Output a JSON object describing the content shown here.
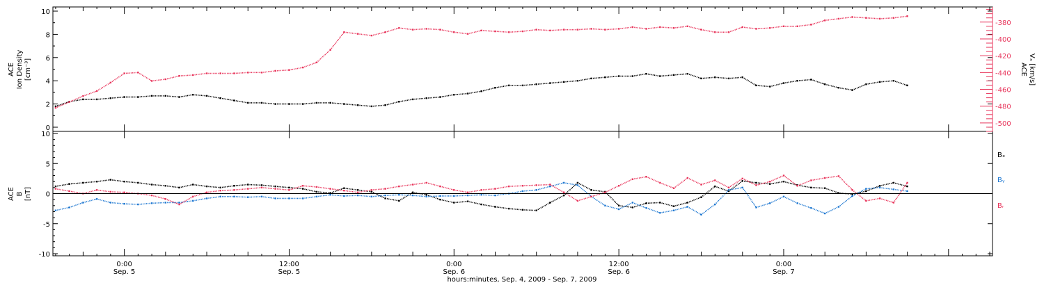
{
  "colors": {
    "black": "#000000",
    "pink": "#e8365c",
    "blue": "#1f78d1"
  },
  "figure": {
    "xlabel": "hours:minutes, Sep.  4, 2009 - Sep.  7, 2009"
  },
  "chart_data": [
    {
      "type": "scatter",
      "panel": "top",
      "left_axis": {
        "label_lines": [
          "ACE",
          "Ion Density",
          "[cm⁻³]"
        ],
        "ylim": [
          0,
          10
        ],
        "ticks": [
          0,
          2,
          4,
          6,
          8,
          10
        ]
      },
      "right_axis": {
        "label_lines": [
          "ACE",
          "Vₓ [km/s]"
        ],
        "ylim": [
          -510,
          -362
        ],
        "ticks": [
          -500,
          -480,
          -460,
          -440,
          -420,
          -400,
          -380
        ]
      },
      "xlim_hours": [
        -5.2,
        63.2
      ],
      "series": [
        {
          "name": "",
          "axis": "left",
          "color": "black",
          "x": [
            -5,
            -4,
            -3,
            -2,
            -1,
            0,
            1,
            2,
            3,
            4,
            5,
            6,
            7,
            8,
            9,
            10,
            11,
            12,
            13,
            14,
            15,
            16,
            17,
            18,
            19,
            20,
            21,
            22,
            23,
            24,
            25,
            26,
            27,
            28,
            29,
            30,
            31,
            32,
            33,
            34,
            35,
            36,
            37,
            38,
            39,
            40,
            41,
            42,
            43,
            44,
            45,
            46,
            47,
            48,
            49,
            50,
            51,
            52,
            53,
            54,
            55,
            56,
            57
          ],
          "y": [
            1.8,
            2.2,
            2.4,
            2.4,
            2.5,
            2.6,
            2.6,
            2.7,
            2.7,
            2.6,
            2.8,
            2.7,
            2.5,
            2.3,
            2.1,
            2.1,
            2.0,
            2.0,
            2.0,
            2.1,
            2.1,
            2.0,
            1.9,
            1.8,
            1.9,
            2.2,
            2.4,
            2.5,
            2.6,
            2.8,
            2.9,
            3.1,
            3.4,
            3.6,
            3.6,
            3.7,
            3.8,
            3.9,
            4.0,
            4.2,
            4.3,
            4.4,
            4.4,
            4.6,
            4.4,
            4.5,
            4.6,
            4.2,
            4.3,
            4.2,
            4.3,
            3.6,
            3.5,
            3.8,
            4.0,
            4.1,
            3.7,
            3.4,
            3.2,
            3.7,
            3.9,
            4.0,
            3.6
          ]
        },
        {
          "name": "",
          "axis": "right",
          "color": "pink",
          "x": [
            -5,
            -4,
            -3,
            -2,
            -1,
            0,
            1,
            2,
            3,
            4,
            5,
            6,
            7,
            8,
            9,
            10,
            11,
            12,
            13,
            14,
            15,
            16,
            17,
            18,
            19,
            20,
            21,
            22,
            23,
            24,
            25,
            26,
            27,
            28,
            29,
            30,
            31,
            32,
            33,
            34,
            35,
            36,
            37,
            38,
            39,
            40,
            41,
            42,
            43,
            44,
            45,
            46,
            47,
            48,
            49,
            50,
            51,
            52,
            53,
            54,
            55,
            56,
            57
          ],
          "y": [
            -482,
            -475,
            -468,
            -462,
            -452,
            -441,
            -440,
            -450,
            -448,
            -444,
            -443,
            -441,
            -441,
            -441,
            -440,
            -440,
            -438,
            -437,
            -434,
            -428,
            -413,
            -392,
            -394,
            -396,
            -392,
            -387,
            -389,
            -388,
            -389,
            -392,
            -394,
            -390,
            -391,
            -392,
            -391,
            -389,
            -390,
            -389,
            -389,
            -388,
            -389,
            -388,
            -386,
            -388,
            -386,
            -387,
            -385,
            -389,
            -392,
            -392,
            -386,
            -388,
            -387,
            -385,
            -385,
            -383,
            -378,
            -376,
            -374,
            -375,
            -376,
            -375,
            -373
          ]
        }
      ]
    },
    {
      "type": "scatter",
      "panel": "bottom",
      "left_axis": {
        "label_lines": [
          "ACE",
          "B",
          "[nT]"
        ],
        "ylim": [
          -10,
          10
        ],
        "ticks": [
          -10,
          -5,
          0,
          5,
          10
        ]
      },
      "xlim_hours": [
        -5.2,
        63.2
      ],
      "x_ticks": [
        {
          "hour": 0,
          "time": "0:00",
          "date": "Sep. 5"
        },
        {
          "hour": 12,
          "time": "12:00",
          "date": "Sep. 5"
        },
        {
          "hour": 24,
          "time": "0:00",
          "date": "Sep. 6"
        },
        {
          "hour": 36,
          "time": "12:00",
          "date": "Sep. 6"
        },
        {
          "hour": 48,
          "time": "0:00",
          "date": "Sep. 7"
        }
      ],
      "series": [
        {
          "name": "Bₓ",
          "color": "black",
          "x": [
            -5,
            -4,
            -3,
            -2,
            -1,
            0,
            1,
            2,
            3,
            4,
            5,
            6,
            7,
            8,
            9,
            10,
            11,
            12,
            13,
            14,
            15,
            16,
            17,
            18,
            19,
            20,
            21,
            22,
            23,
            24,
            25,
            26,
            27,
            28,
            29,
            30,
            31,
            32,
            33,
            34,
            35,
            36,
            37,
            38,
            39,
            40,
            41,
            42,
            43,
            44,
            45,
            46,
            47,
            48,
            49,
            50,
            51,
            52,
            53,
            54,
            55,
            56,
            57
          ],
          "y": [
            1.2,
            1.6,
            1.8,
            2.0,
            2.3,
            2.0,
            1.8,
            1.5,
            1.3,
            1.0,
            1.5,
            1.2,
            1.0,
            1.3,
            1.5,
            1.4,
            1.2,
            1.0,
            0.8,
            0.3,
            0.1,
            0.9,
            0.6,
            0.3,
            -0.8,
            -1.2,
            0.2,
            -0.2,
            -1.0,
            -1.5,
            -1.3,
            -1.8,
            -2.2,
            -2.5,
            -2.7,
            -2.8,
            -1.5,
            -0.3,
            1.8,
            0.6,
            0.3,
            -2.0,
            -2.3,
            -1.6,
            -1.5,
            -2.1,
            -1.5,
            -0.6,
            1.2,
            0.4,
            2.1,
            1.8,
            1.6,
            2.0,
            1.4,
            1.0,
            0.9,
            0.1,
            -0.1,
            0.4,
            1.3,
            1.8,
            1.2
          ]
        },
        {
          "name": "Bᵧ",
          "color": "blue",
          "x": [
            -5,
            -4,
            -3,
            -2,
            -1,
            0,
            1,
            2,
            3,
            4,
            5,
            6,
            7,
            8,
            9,
            10,
            11,
            12,
            13,
            14,
            15,
            16,
            17,
            18,
            19,
            20,
            21,
            22,
            23,
            24,
            25,
            26,
            27,
            28,
            29,
            30,
            31,
            32,
            33,
            34,
            35,
            36,
            37,
            38,
            39,
            40,
            41,
            42,
            43,
            44,
            45,
            46,
            47,
            48,
            49,
            50,
            51,
            52,
            53,
            54,
            55,
            56,
            57
          ],
          "y": [
            -2.8,
            -2.3,
            -1.5,
            -0.9,
            -1.5,
            -1.7,
            -1.8,
            -1.6,
            -1.5,
            -1.5,
            -1.2,
            -0.8,
            -0.5,
            -0.5,
            -0.6,
            -0.5,
            -0.8,
            -0.8,
            -0.8,
            -0.5,
            -0.2,
            -0.4,
            -0.3,
            -0.5,
            -0.3,
            -0.2,
            -0.3,
            -0.5,
            -0.4,
            -0.4,
            -0.3,
            -0.2,
            -0.3,
            0.0,
            0.4,
            0.6,
            1.2,
            1.8,
            1.4,
            -0.5,
            -2.0,
            -2.6,
            -1.5,
            -2.4,
            -3.2,
            -2.8,
            -2.2,
            -3.5,
            -1.8,
            0.6,
            1.0,
            -2.3,
            -1.6,
            -0.5,
            -1.6,
            -2.4,
            -3.3,
            -2.2,
            -0.4,
            0.8,
            1.0,
            0.7,
            0.4
          ]
        },
        {
          "name": "Bᵣ",
          "color": "pink",
          "x": [
            -5,
            -4,
            -3,
            -2,
            -1,
            0,
            1,
            2,
            3,
            4,
            5,
            6,
            7,
            8,
            9,
            10,
            11,
            12,
            13,
            14,
            15,
            16,
            17,
            18,
            19,
            20,
            21,
            22,
            23,
            24,
            25,
            26,
            27,
            28,
            29,
            30,
            31,
            32,
            33,
            34,
            35,
            36,
            37,
            38,
            39,
            40,
            41,
            42,
            43,
            44,
            45,
            46,
            47,
            48,
            49,
            50,
            51,
            52,
            53,
            54,
            55,
            56,
            57
          ],
          "y": [
            0.8,
            0.4,
            0.0,
            0.6,
            0.3,
            0.2,
            0.0,
            -0.3,
            -0.9,
            -1.8,
            -0.5,
            0.2,
            0.5,
            0.6,
            0.8,
            1.0,
            0.8,
            0.6,
            1.3,
            1.1,
            0.8,
            0.5,
            0.2,
            0.6,
            0.8,
            1.2,
            1.5,
            1.8,
            1.2,
            0.6,
            0.2,
            0.6,
            0.8,
            1.2,
            1.3,
            1.4,
            1.5,
            0.2,
            -1.2,
            -0.5,
            0.2,
            1.3,
            2.4,
            2.8,
            1.8,
            0.9,
            2.6,
            1.5,
            2.2,
            1.0,
            2.5,
            1.4,
            2.0,
            3.0,
            1.3,
            2.2,
            2.6,
            2.9,
            0.6,
            -1.2,
            -0.8,
            -1.5,
            1.8
          ]
        }
      ]
    }
  ]
}
